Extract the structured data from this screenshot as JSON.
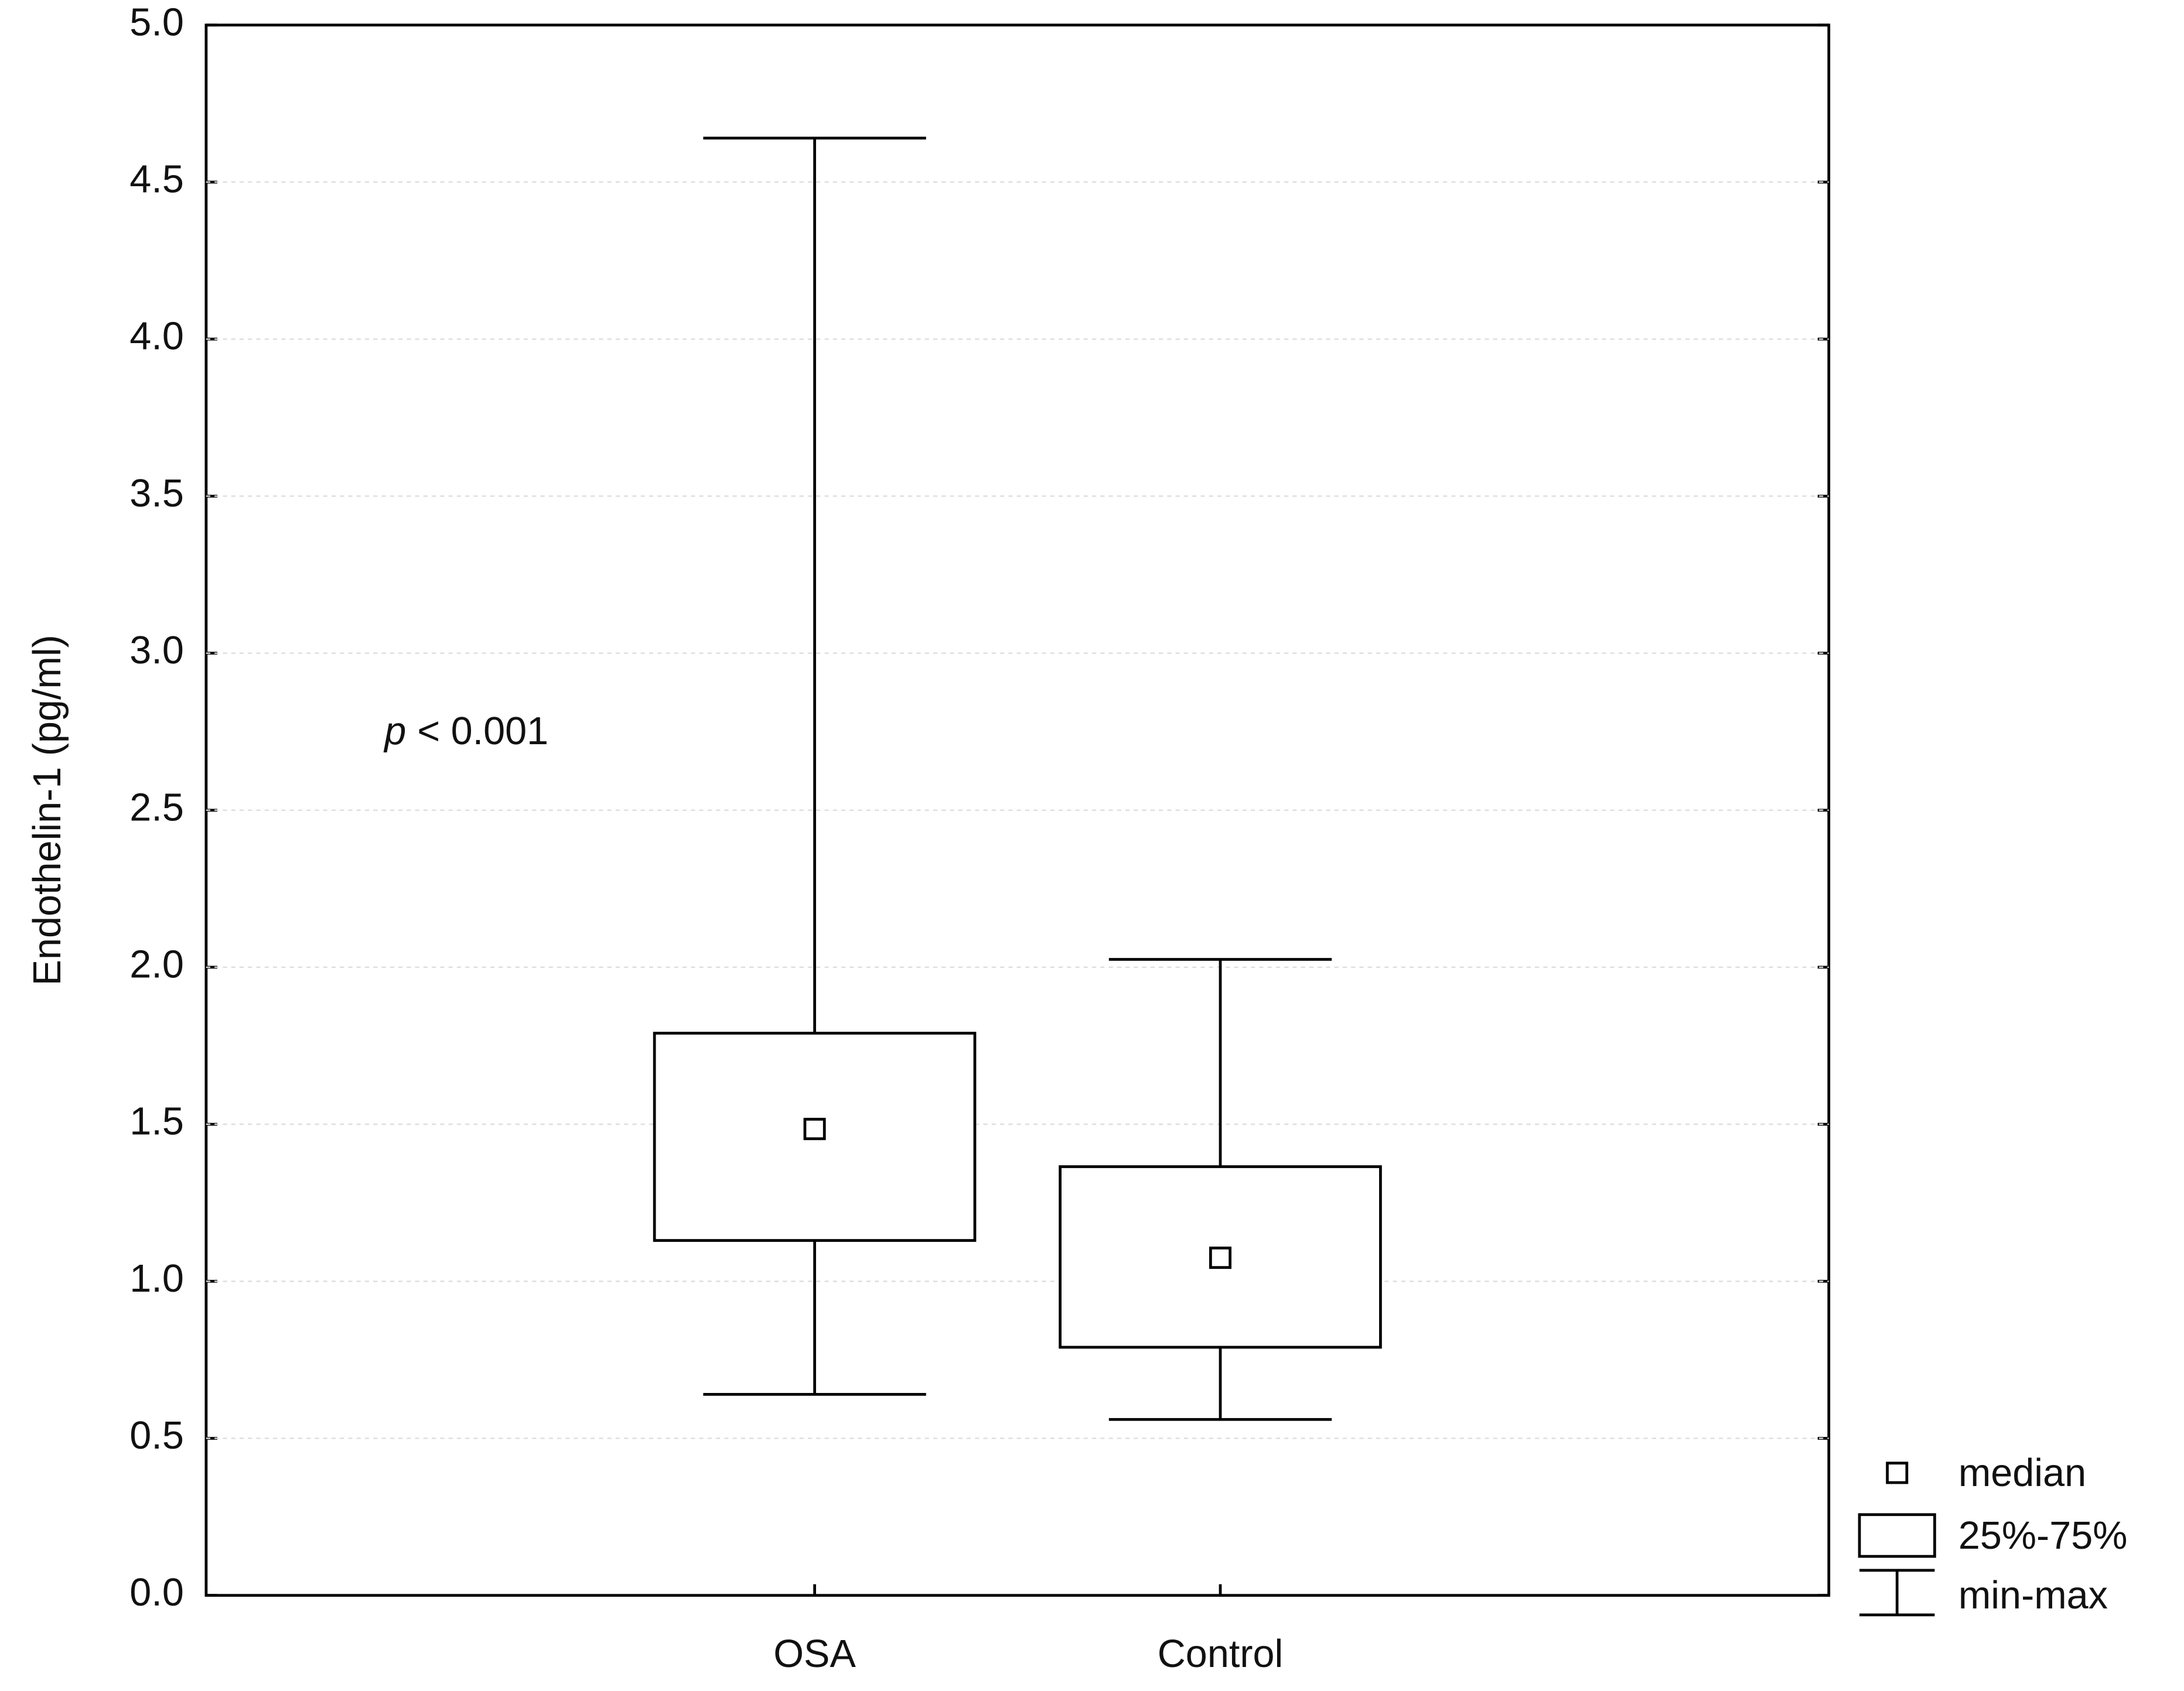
{
  "chart_data": {
    "type": "box",
    "y_label": "Endothelin-1 (pg/ml)",
    "annotation_symbol": "p",
    "annotation_text": "< 0.001",
    "categories": [
      "OSA",
      "Control"
    ],
    "boxes": [
      {
        "min": 0.64,
        "q1": 1.13,
        "median": 1.485,
        "q3": 1.79,
        "max": 4.64
      },
      {
        "min": 0.56,
        "q1": 0.79,
        "median": 1.075,
        "q3": 1.365,
        "max": 2.025
      }
    ],
    "legend": [
      "median",
      "25%-75%",
      "min-max"
    ],
    "ylim": [
      0,
      5
    ],
    "yticks": [
      {
        "value": 0,
        "label": "0.0"
      },
      0.5,
      {
        "value": 1,
        "label": "1.0"
      },
      1.5,
      {
        "value": 2,
        "label": "2.0"
      },
      2.5,
      {
        "value": 3,
        "label": "3.0"
      },
      3.5,
      {
        "value": 4,
        "label": "4.0"
      },
      4.5,
      {
        "value": 5,
        "label": "5.0"
      }
    ],
    "grid": true,
    "color": "#000000"
  }
}
